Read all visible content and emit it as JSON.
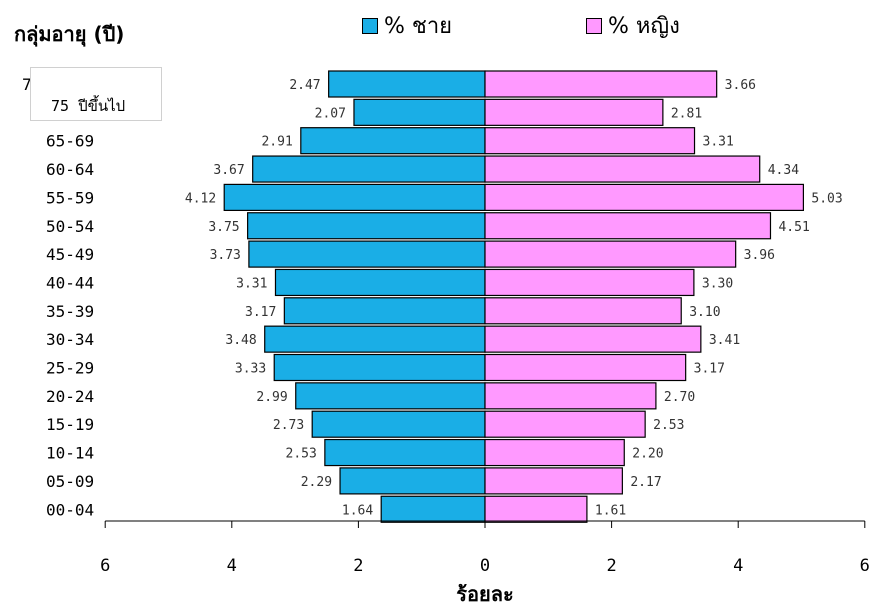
{
  "chart_data": {
    "type": "bar",
    "orientation": "horizontal-pyramid",
    "ylabel": "กลุ่มอายุ (ปี)",
    "xlabel": "ร้อยละ",
    "xlim": [
      -6,
      6
    ],
    "xticks": [
      -6,
      -4,
      -2,
      0,
      2,
      4,
      6
    ],
    "xtick_labels": [
      "6",
      "4",
      "2",
      "0",
      "2",
      "4",
      "6"
    ],
    "legend_position": "top",
    "categories": [
      "75",
      "",
      "65-69",
      "60-64",
      "55-59",
      "50-54",
      "45-49",
      "40-44",
      "35-39",
      "30-34",
      "25-29",
      "20-24",
      "15-19",
      "10-14",
      "05-09",
      "00-04"
    ],
    "series": [
      {
        "name": "% ชาย",
        "color": "#1aaee6",
        "side": "left",
        "values": [
          2.47,
          2.07,
          2.91,
          3.67,
          4.12,
          3.75,
          3.73,
          3.31,
          3.17,
          3.48,
          3.33,
          2.99,
          2.73,
          2.53,
          2.29,
          1.64
        ],
        "value_labels": [
          "2.47",
          "2.07",
          "2.91",
          "3.67",
          "4.12",
          "3.75",
          "3.73",
          "3.31",
          "3.17",
          "3.48",
          "3.33",
          "2.99",
          "2.73",
          "2.53",
          "2.29",
          "1.64"
        ]
      },
      {
        "name": "% หญิง",
        "color": "#ff99ff",
        "side": "right",
        "values": [
          3.66,
          2.81,
          3.31,
          4.34,
          5.03,
          4.51,
          3.96,
          3.3,
          3.1,
          3.41,
          3.17,
          2.7,
          2.53,
          2.2,
          2.17,
          1.61
        ],
        "value_labels": [
          "3.66",
          "2.81",
          "3.31",
          "4.34",
          "5.03",
          "4.51",
          "3.96",
          "3.30",
          "3.10",
          "3.41",
          "3.17",
          "2.70",
          "2.53",
          "2.20",
          "2.17",
          "1.61"
        ]
      }
    ]
  },
  "overlay_box": {
    "text": "75 ปีขึ้นไป"
  }
}
